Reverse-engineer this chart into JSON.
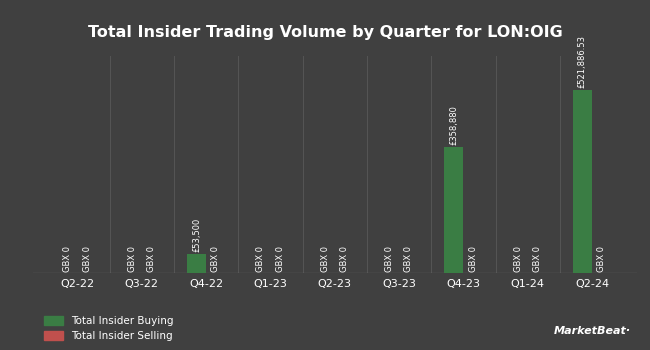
{
  "title": "Total Insider Trading Volume by Quarter for LON:OIG",
  "quarters": [
    "Q2-22",
    "Q3-22",
    "Q4-22",
    "Q1-23",
    "Q2-23",
    "Q3-23",
    "Q4-23",
    "Q1-24",
    "Q2-24"
  ],
  "buying": [
    0,
    0,
    53500,
    0,
    0,
    0,
    358880,
    0,
    521886.53
  ],
  "selling": [
    0,
    0,
    0,
    0,
    0,
    0,
    0,
    0,
    0
  ],
  "buy_labels": [
    "GBX 0",
    "GBX 0",
    "£53,500",
    "GBX 0",
    "GBX 0",
    "GBX 0",
    "£358,880",
    "GBX 0",
    "£521,886.53"
  ],
  "sell_labels": [
    "GBX 0",
    "GBX 0",
    "GBX 0",
    "GBX 0",
    "GBX 0",
    "GBX 0",
    "GBX 0",
    "GBX 0",
    "GBX 0"
  ],
  "buy_color": "#3a7d44",
  "sell_color": "#c0504d",
  "background_color": "#404040",
  "text_color": "#ffffff",
  "grid_color": "#555555",
  "legend_buy": "Total Insider Buying",
  "legend_sell": "Total Insider Selling",
  "bar_width": 0.3,
  "ylim": [
    0,
    620000
  ],
  "label_fontsize": 6.0,
  "tick_fontsize": 8.0,
  "title_fontsize": 11.5
}
